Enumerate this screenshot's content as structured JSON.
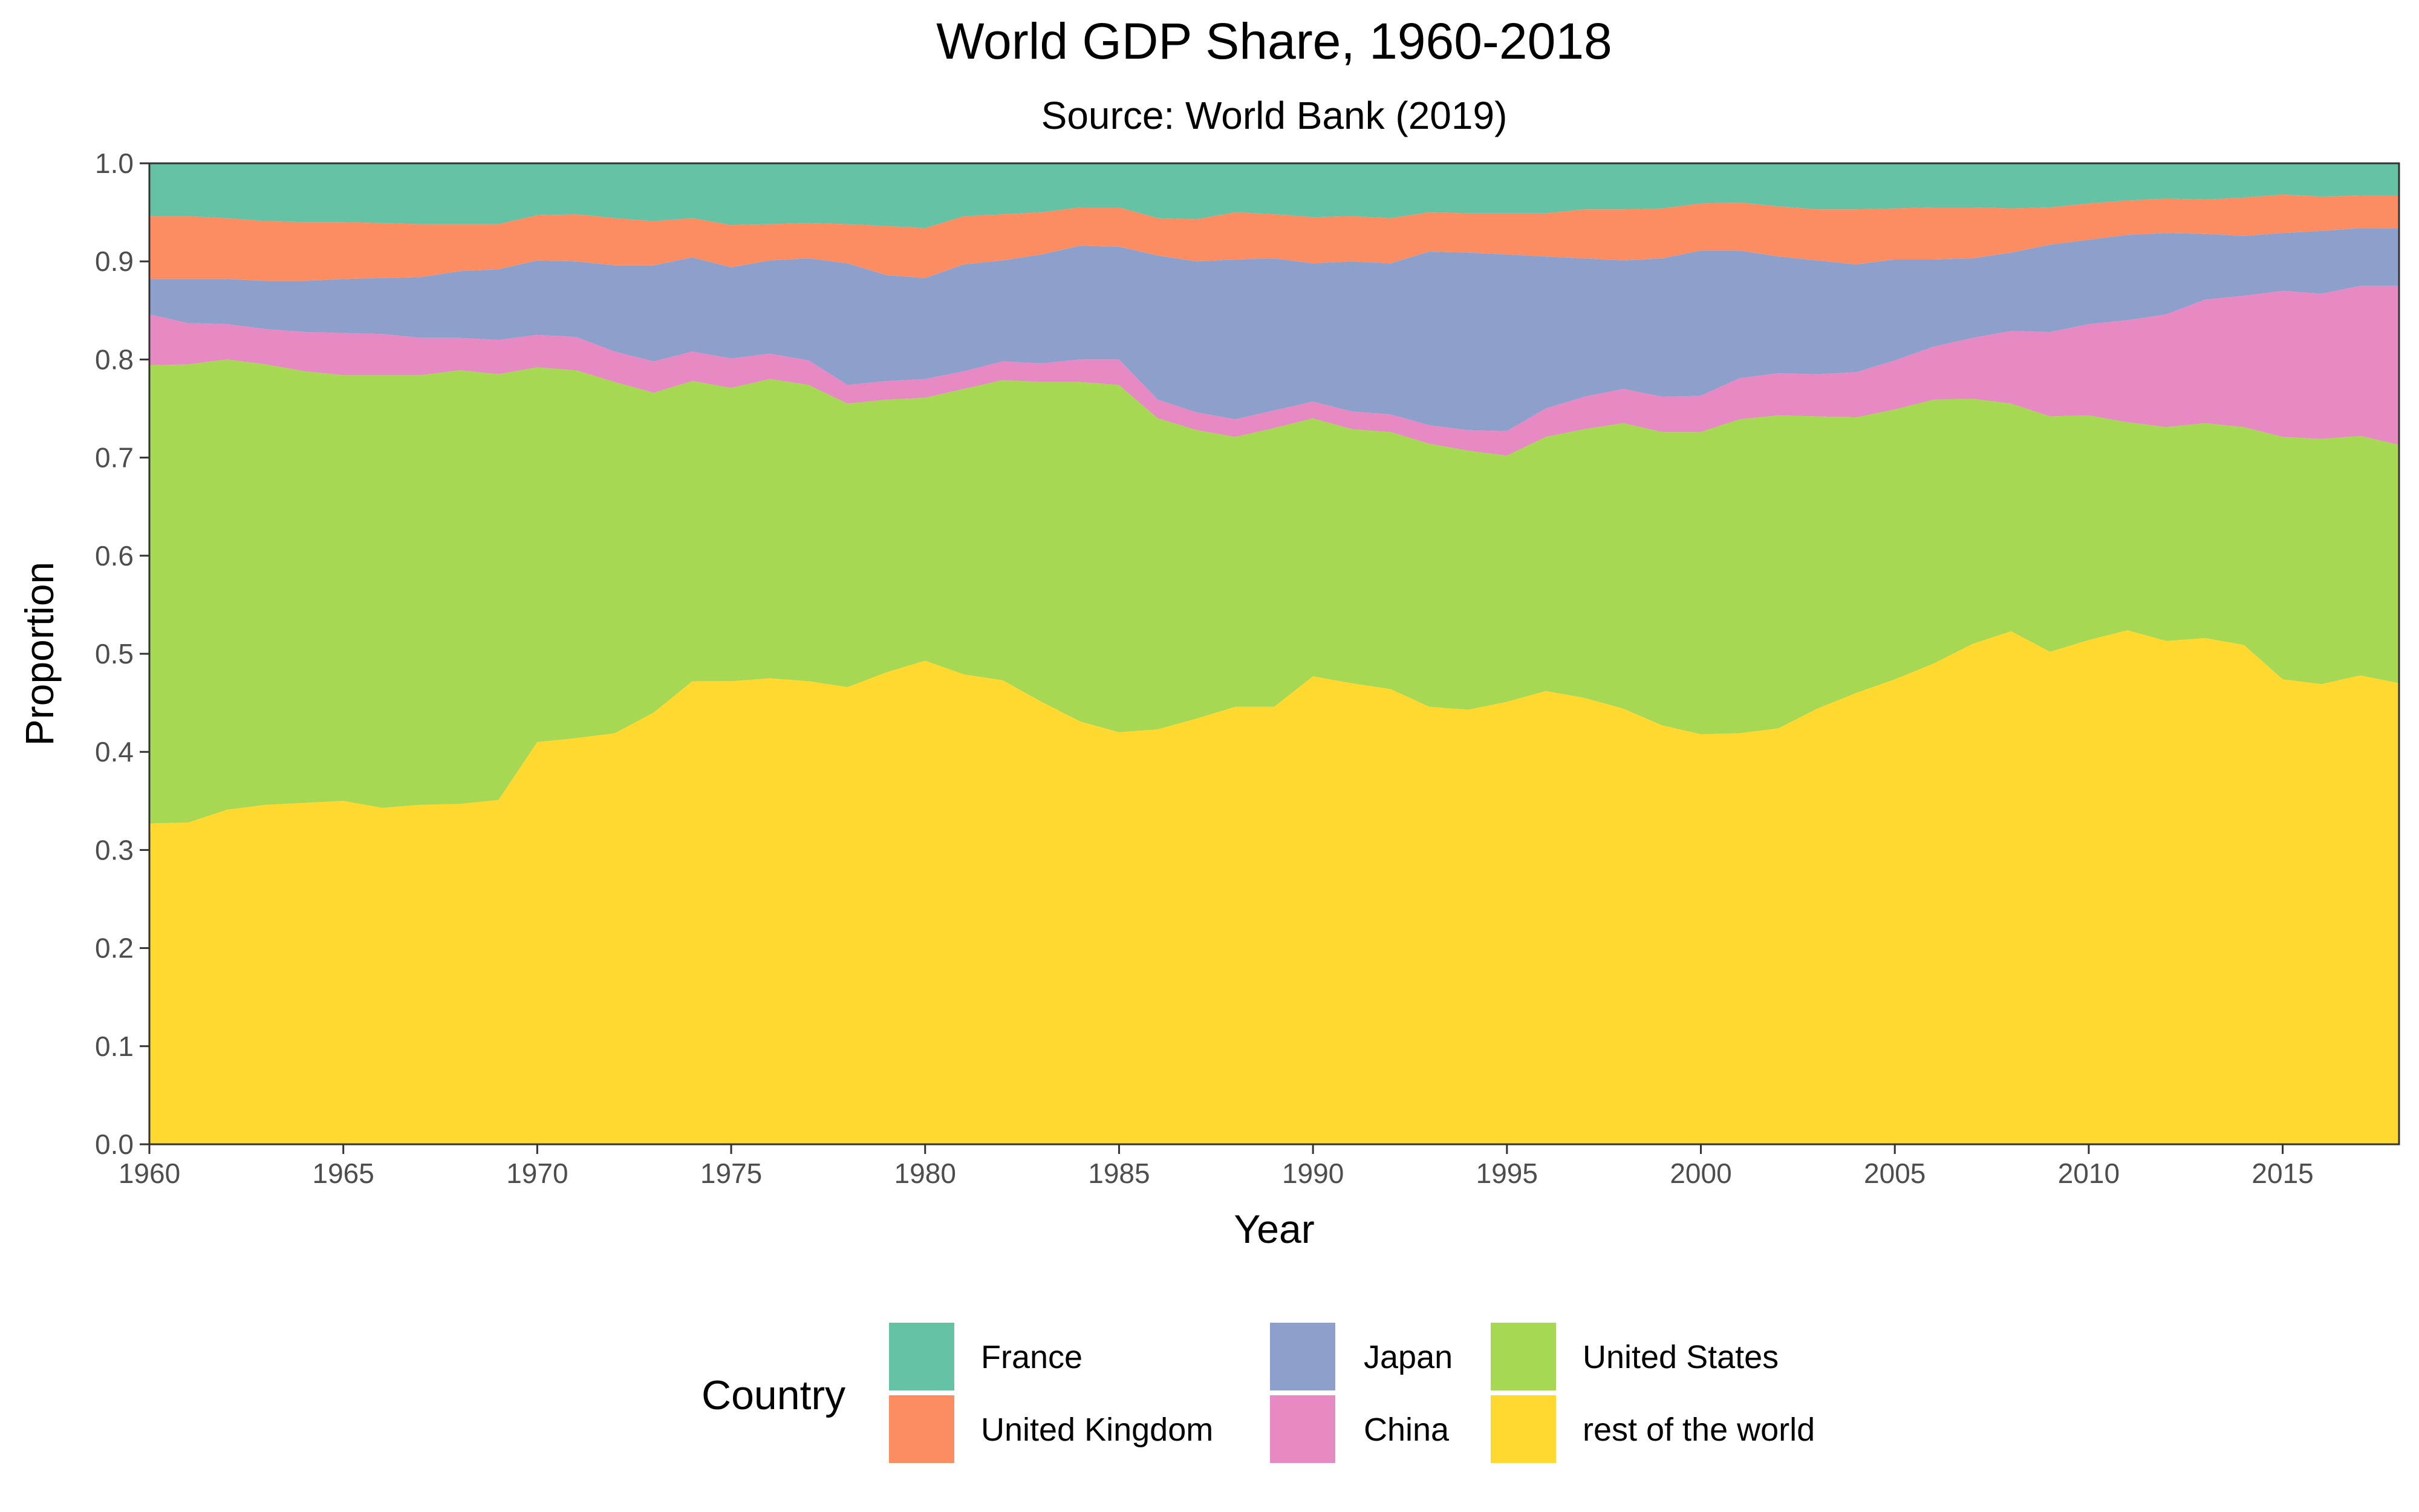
{
  "chart_data": {
    "type": "area",
    "title": "World GDP Share, 1960-2018",
    "subtitle": "Source: World Bank (2019)",
    "xlabel": "Year",
    "ylabel": "Proportion",
    "stacked": true,
    "xlim": [
      1960,
      2018
    ],
    "ylim": [
      0,
      1
    ],
    "x_ticks": [
      1960,
      1965,
      1970,
      1975,
      1980,
      1985,
      1990,
      1995,
      2000,
      2005,
      2010,
      2015
    ],
    "x_tick_labels": [
      "1960",
      "1965",
      "1970",
      "1975",
      "1980",
      "1985",
      "1990",
      "1995",
      "2000",
      "2005",
      "2010",
      "2015"
    ],
    "y_ticks": [
      0,
      0.1,
      0.2,
      0.3,
      0.4,
      0.5,
      0.6,
      0.7,
      0.8,
      0.9,
      1.0
    ],
    "y_tick_labels": [
      "0.0",
      "0.1",
      "0.2",
      "0.3",
      "0.4",
      "0.5",
      "0.6",
      "0.7",
      "0.8",
      "0.9",
      "1.0"
    ],
    "grid": false,
    "legend": {
      "title": "Country",
      "position": "bottom"
    },
    "x": [
      1960,
      1961,
      1962,
      1963,
      1964,
      1965,
      1966,
      1967,
      1968,
      1969,
      1970,
      1971,
      1972,
      1973,
      1974,
      1975,
      1976,
      1977,
      1978,
      1979,
      1980,
      1981,
      1982,
      1983,
      1984,
      1985,
      1986,
      1987,
      1988,
      1989,
      1990,
      1991,
      1992,
      1993,
      1994,
      1995,
      1996,
      1997,
      1998,
      1999,
      2000,
      2001,
      2002,
      2003,
      2004,
      2005,
      2006,
      2007,
      2008,
      2009,
      2010,
      2011,
      2012,
      2013,
      2014,
      2015,
      2016,
      2017,
      2018
    ],
    "series": [
      {
        "name": "rest of the world",
        "color": "#FFD92F",
        "values": [
          0.327,
          0.328,
          0.341,
          0.346,
          0.348,
          0.35,
          0.343,
          0.346,
          0.347,
          0.351,
          0.41,
          0.414,
          0.419,
          0.44,
          0.472,
          0.472,
          0.475,
          0.472,
          0.466,
          0.481,
          0.493,
          0.479,
          0.473,
          0.451,
          0.431,
          0.42,
          0.423,
          0.434,
          0.446,
          0.446,
          0.477,
          0.47,
          0.464,
          0.446,
          0.443,
          0.451,
          0.462,
          0.455,
          0.444,
          0.427,
          0.418,
          0.419,
          0.424,
          0.444,
          0.46,
          0.474,
          0.49,
          0.51,
          0.523,
          0.502,
          0.514,
          0.524,
          0.513,
          0.516,
          0.509,
          0.474,
          0.469,
          0.478,
          0.47
        ]
      },
      {
        "name": "United States",
        "color": "#A6D854",
        "values": [
          0.467,
          0.467,
          0.459,
          0.449,
          0.44,
          0.434,
          0.441,
          0.438,
          0.442,
          0.434,
          0.382,
          0.375,
          0.358,
          0.326,
          0.306,
          0.299,
          0.305,
          0.302,
          0.289,
          0.278,
          0.268,
          0.291,
          0.306,
          0.326,
          0.346,
          0.354,
          0.317,
          0.294,
          0.275,
          0.284,
          0.263,
          0.259,
          0.262,
          0.268,
          0.264,
          0.251,
          0.259,
          0.274,
          0.291,
          0.299,
          0.308,
          0.32,
          0.319,
          0.298,
          0.281,
          0.275,
          0.269,
          0.25,
          0.232,
          0.24,
          0.229,
          0.212,
          0.218,
          0.219,
          0.222,
          0.247,
          0.25,
          0.244,
          0.243
        ]
      },
      {
        "name": "China",
        "color": "#E78AC3",
        "values": [
          0.052,
          0.042,
          0.036,
          0.036,
          0.04,
          0.043,
          0.042,
          0.038,
          0.033,
          0.035,
          0.033,
          0.034,
          0.031,
          0.032,
          0.03,
          0.03,
          0.026,
          0.025,
          0.019,
          0.019,
          0.019,
          0.018,
          0.019,
          0.019,
          0.023,
          0.026,
          0.019,
          0.018,
          0.018,
          0.018,
          0.017,
          0.018,
          0.018,
          0.019,
          0.021,
          0.025,
          0.029,
          0.033,
          0.035,
          0.036,
          0.037,
          0.042,
          0.043,
          0.043,
          0.046,
          0.05,
          0.054,
          0.062,
          0.074,
          0.086,
          0.093,
          0.104,
          0.115,
          0.126,
          0.134,
          0.149,
          0.148,
          0.153,
          0.162
        ]
      },
      {
        "name": "Japan",
        "color": "#8DA0CB",
        "values": [
          0.036,
          0.045,
          0.046,
          0.049,
          0.052,
          0.055,
          0.057,
          0.062,
          0.068,
          0.072,
          0.076,
          0.077,
          0.088,
          0.098,
          0.096,
          0.093,
          0.095,
          0.104,
          0.124,
          0.108,
          0.103,
          0.109,
          0.103,
          0.111,
          0.116,
          0.115,
          0.147,
          0.154,
          0.163,
          0.155,
          0.141,
          0.153,
          0.154,
          0.177,
          0.181,
          0.18,
          0.155,
          0.141,
          0.131,
          0.141,
          0.148,
          0.13,
          0.119,
          0.116,
          0.11,
          0.103,
          0.089,
          0.081,
          0.08,
          0.089,
          0.086,
          0.087,
          0.083,
          0.067,
          0.061,
          0.059,
          0.064,
          0.059,
          0.059
        ]
      },
      {
        "name": "United Kingdom",
        "color": "#FC8D62",
        "values": [
          0.064,
          0.064,
          0.062,
          0.061,
          0.06,
          0.058,
          0.056,
          0.054,
          0.048,
          0.046,
          0.046,
          0.048,
          0.048,
          0.045,
          0.04,
          0.043,
          0.037,
          0.036,
          0.04,
          0.05,
          0.051,
          0.049,
          0.047,
          0.043,
          0.039,
          0.04,
          0.038,
          0.043,
          0.048,
          0.045,
          0.047,
          0.046,
          0.046,
          0.04,
          0.04,
          0.042,
          0.044,
          0.05,
          0.052,
          0.051,
          0.048,
          0.049,
          0.051,
          0.052,
          0.056,
          0.052,
          0.053,
          0.052,
          0.045,
          0.038,
          0.037,
          0.035,
          0.035,
          0.035,
          0.039,
          0.039,
          0.035,
          0.033,
          0.033
        ]
      },
      {
        "name": "France",
        "color": "#66C2A5",
        "values": [
          0.054,
          0.054,
          0.056,
          0.059,
          0.06,
          0.06,
          0.061,
          0.062,
          0.062,
          0.062,
          0.053,
          0.052,
          0.056,
          0.059,
          0.056,
          0.063,
          0.062,
          0.061,
          0.062,
          0.064,
          0.066,
          0.054,
          0.052,
          0.05,
          0.045,
          0.045,
          0.056,
          0.057,
          0.05,
          0.052,
          0.055,
          0.054,
          0.056,
          0.05,
          0.051,
          0.051,
          0.051,
          0.047,
          0.047,
          0.046,
          0.041,
          0.04,
          0.044,
          0.047,
          0.047,
          0.046,
          0.045,
          0.045,
          0.046,
          0.045,
          0.041,
          0.038,
          0.036,
          0.037,
          0.035,
          0.032,
          0.034,
          0.033,
          0.033
        ]
      }
    ],
    "legend_entries": [
      "France",
      "United Kingdom",
      "Japan",
      "China",
      "United States",
      "rest of the world"
    ]
  }
}
